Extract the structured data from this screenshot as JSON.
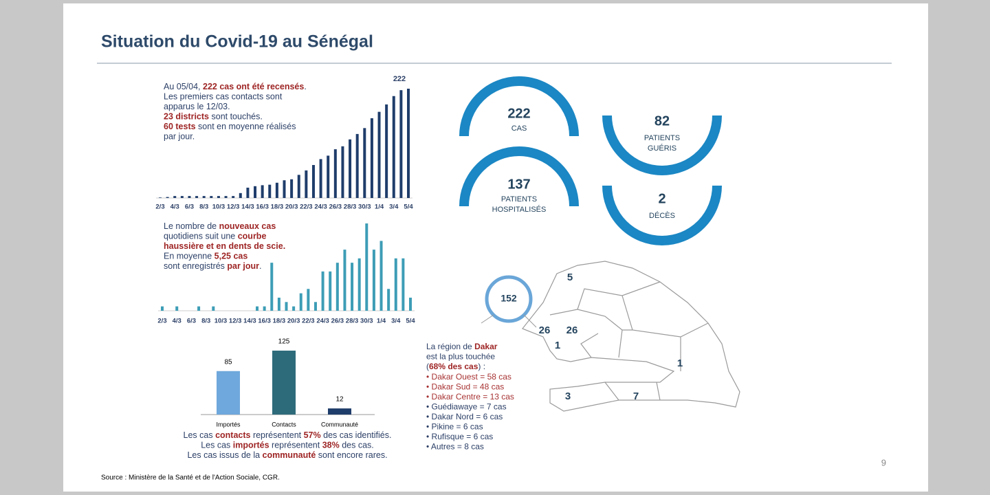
{
  "title": "Situation du Covid-19 au Sénégal",
  "source": "Source : Ministère de la Santé et de l'Action Sociale, CGR.",
  "page_number": "9",
  "summary_text": [
    [
      {
        "text": "Au 05/04, "
      },
      {
        "text": "222 cas ont été recensés",
        "emphasis": true
      },
      {
        "text": "."
      }
    ],
    [
      {
        "text": "Les premiers cas contacts sont"
      }
    ],
    [
      {
        "text": "apparus le 12/03."
      }
    ],
    [
      {
        "text": "23 districts",
        "emphasis": true
      },
      {
        "text": " sont touchés."
      }
    ],
    [
      {
        "text": "60 tests",
        "emphasis": true
      },
      {
        "text": " sont en moyenne réalisés"
      }
    ],
    [
      {
        "text": "par jour."
      }
    ]
  ],
  "daily_text": [
    [
      {
        "text": "Le nombre de "
      },
      {
        "text": "nouveaux cas",
        "emphasis": true
      }
    ],
    [
      {
        "text": "quotidiens suit une "
      },
      {
        "text": "courbe",
        "emphasis": true
      }
    ],
    [
      {
        "text": "haussière et en dents de scie.",
        "emphasis": true
      }
    ],
    [
      {
        "text": "En moyenne "
      },
      {
        "text": "5,25 cas",
        "emphasis": true
      }
    ],
    [
      {
        "text": "sont enregistrés "
      },
      {
        "text": "par jour",
        "emphasis": true
      },
      {
        "text": "."
      }
    ]
  ],
  "origin_text": [
    [
      {
        "text": "Les cas "
      },
      {
        "text": "contacts",
        "emphasis": true
      },
      {
        "text": " représentent "
      },
      {
        "text": "57%",
        "emphasis": true
      },
      {
        "text": " des cas identifiés."
      }
    ],
    [
      {
        "text": "Les cas "
      },
      {
        "text": "importés",
        "emphasis": true
      },
      {
        "text": " représentent "
      },
      {
        "text": "38%",
        "emphasis": true
      },
      {
        "text": " des cas."
      }
    ],
    [
      {
        "text": "Les cas issus de la "
      },
      {
        "text": "communauté",
        "emphasis": true
      },
      {
        "text": " sont encore rares."
      }
    ]
  ],
  "chart_data": [
    {
      "type": "bar",
      "color": "#1f3d6b",
      "categories": [
        "2/3",
        null,
        "4/3",
        null,
        "6/3",
        null,
        "8/3",
        null,
        "10/3",
        null,
        "12/3",
        null,
        "14/3",
        null,
        "16/3",
        null,
        "18/3",
        null,
        "20/3",
        null,
        "22/3",
        null,
        "24/3",
        null,
        "26/3",
        null,
        "28/3",
        null,
        "30/3",
        null,
        "1/4",
        null,
        "3/4",
        null,
        "5/4"
      ],
      "values": [
        1,
        2,
        4,
        4,
        4,
        4,
        4,
        4,
        4,
        4,
        4,
        10,
        21,
        24,
        26,
        27,
        31,
        36,
        38,
        47,
        56,
        67,
        79,
        86,
        99,
        105,
        119,
        130,
        142,
        162,
        175,
        190,
        207,
        219,
        222
      ]
    },
    {
      "type": "bar",
      "color": "#3d9db6",
      "categories": [
        "2/3",
        null,
        "4/3",
        null,
        "6/3",
        null,
        "8/3",
        null,
        "10/3",
        null,
        "12/3",
        null,
        "14/3",
        null,
        "16/3",
        null,
        "18/3",
        null,
        "20/3",
        null,
        "22/3",
        null,
        "24/3",
        null,
        "26/3",
        null,
        "28/3",
        null,
        "30/3",
        null,
        "1/4",
        null,
        "3/4",
        null,
        "5/4"
      ],
      "values": [
        1,
        0,
        1,
        0,
        0,
        1,
        0,
        1,
        0,
        0,
        0,
        0,
        0,
        1,
        1,
        11,
        3,
        2,
        1,
        4,
        5,
        2,
        9,
        9,
        11,
        14,
        11,
        12,
        20,
        14,
        16,
        5,
        12,
        12,
        3
      ]
    },
    {
      "type": "bar",
      "categories": [
        "Importés",
        "Contacts",
        "Communauté"
      ],
      "values": [
        85,
        125,
        12
      ],
      "colors": [
        "#6fa8dc",
        "#2e6b7a",
        "#1f3d6b"
      ]
    }
  ],
  "kpis": [
    {
      "value": 222,
      "label": [
        "CAS"
      ]
    },
    {
      "value": 82,
      "label": [
        "PATIENTS",
        "GUÉRIS"
      ]
    },
    {
      "value": 137,
      "label": [
        "PATIENTS",
        "HOSPITALISÉS"
      ]
    },
    {
      "value": 2,
      "label": [
        "DÉCÈS"
      ]
    }
  ],
  "map": {
    "regions": [
      {
        "value": 5
      },
      {
        "value": 152
      },
      {
        "value": 26
      },
      {
        "value": 26
      },
      {
        "value": 1
      },
      {
        "value": 1
      },
      {
        "value": 3
      },
      {
        "value": 7
      }
    ]
  },
  "dakar_text": [
    [
      {
        "text": "La région de "
      },
      {
        "text": "Dakar",
        "emphasis": true
      }
    ],
    [
      {
        "text": "est la plus touchée"
      }
    ],
    [
      {
        "text": "("
      },
      {
        "text": "68% des cas",
        "emphasis": true
      },
      {
        "text": ") :"
      }
    ]
  ],
  "dakar_items": [
    {
      "text": "• Dakar Ouest = 58 cas",
      "highlight": true
    },
    {
      "text": "• Dakar Sud = 48 cas",
      "highlight": true
    },
    {
      "text": "• Dakar Centre = 13 cas",
      "highlight": true
    },
    {
      "text": "• Guédiawaye = 7 cas"
    },
    {
      "text": "• Dakar Nord = 6 cas"
    },
    {
      "text": "• Pikine = 6 cas"
    },
    {
      "text": "• Rufisque = 6 cas"
    },
    {
      "text": "• Autres =  8 cas"
    }
  ]
}
